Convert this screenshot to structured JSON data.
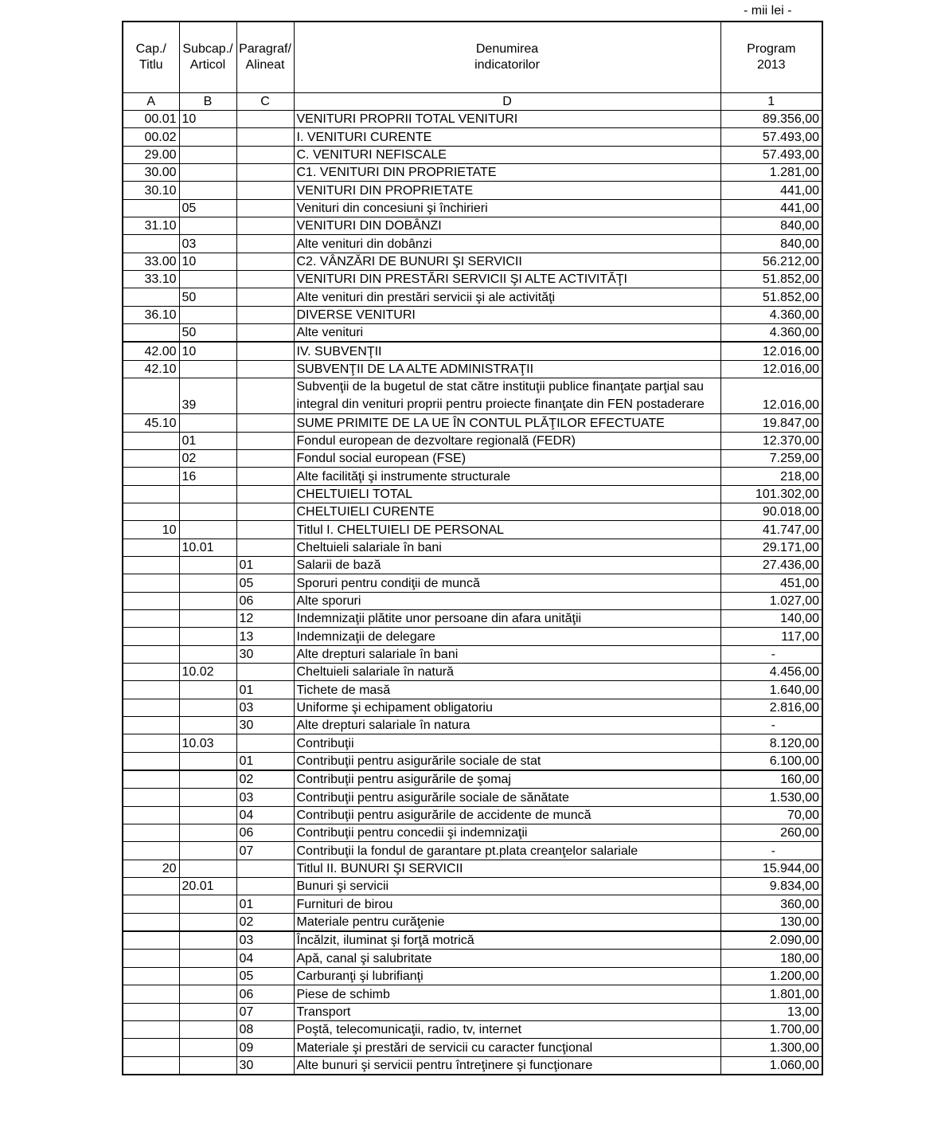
{
  "unit_label": "- mii lei -",
  "header": {
    "col_a": [
      "Cap./",
      "Titlu"
    ],
    "col_b": [
      "Subcap./",
      "Articol"
    ],
    "col_c": [
      "Paragraf/",
      "Alineat"
    ],
    "col_d": [
      "Denumirea",
      "indicatorilor"
    ],
    "col_1": [
      "Program",
      "2013"
    ]
  },
  "letters": [
    "A",
    "B",
    "C",
    "D",
    "1"
  ],
  "rows": [
    [
      "00.01",
      "10",
      "",
      "VENITURI PROPRII TOTAL VENITURI",
      "89.356,00"
    ],
    [
      "00.02",
      "",
      "",
      "I. VENITURI CURENTE",
      "57.493,00"
    ],
    [
      "29.00",
      "",
      "",
      "C. VENITURI NEFISCALE",
      "57.493,00"
    ],
    [
      "30.00",
      "",
      "",
      "C1. VENITURI DIN PROPRIETATE",
      "1.281,00"
    ],
    [
      "30.10",
      "",
      "",
      "VENITURI DIN PROPRIETATE",
      "441,00"
    ],
    [
      "",
      "05",
      "",
      "Venituri din concesiuni şi închirieri",
      "441,00"
    ],
    [
      "31.10",
      "",
      "",
      "VENITURI DIN DOBÂNZI",
      "840,00"
    ],
    [
      "",
      "03",
      "",
      "Alte venituri din dobânzi",
      "840,00"
    ],
    [
      "33.00",
      "10",
      "",
      "C2. VÂNZĂRI DE BUNURI ŞI SERVICII",
      "56.212,00"
    ],
    [
      "33.10",
      "",
      "",
      "VENITURI DIN PRESTĂRI SERVICII ŞI ALTE ACTIVITĂŢI",
      "51.852,00"
    ],
    [
      "",
      "50",
      "",
      "Alte venituri din prestări servicii şi ale activităţi",
      "51.852,00"
    ],
    [
      "36.10",
      "",
      "",
      "DIVERSE VENITURI",
      "4.360,00"
    ],
    [
      "",
      "50",
      "",
      "Alte venituri",
      "4.360,00"
    ],
    [
      "42.00",
      "10",
      "",
      "IV. SUBVENŢII",
      "12.016,00"
    ],
    [
      "42.10",
      "",
      "",
      "SUBVENŢII DE LA ALTE ADMINISTRAŢII",
      "12.016,00"
    ],
    [
      "",
      "39",
      "",
      "Subvenţii de la bugetul de stat către instituţii publice finanţate parţial sau integral din venituri proprii pentru proiecte finanţate din FEN postaderare",
      "12.016,00"
    ],
    [
      "45.10",
      "",
      "",
      "SUME PRIMITE DE LA UE ÎN CONTUL PLĂŢILOR EFECTUATE",
      "19.847,00"
    ],
    [
      "",
      "01",
      "",
      "Fondul european de dezvoltare regională (FEDR)",
      "12.370,00"
    ],
    [
      "",
      "02",
      "",
      "Fondul social european (FSE)",
      "7.259,00"
    ],
    [
      "",
      "16",
      "",
      "Alte facilităţi şi instrumente structurale",
      "218,00"
    ],
    [
      "",
      "",
      "",
      "CHELTUIELI TOTAL",
      "101.302,00"
    ],
    [
      "",
      "",
      "",
      "CHELTUIELI CURENTE",
      "90.018,00"
    ],
    [
      "10",
      "",
      "",
      "Titlul I. CHELTUIELI DE PERSONAL",
      "41.747,00"
    ],
    [
      "",
      "10.01",
      "",
      "Cheltuieli salariale în bani",
      "29.171,00"
    ],
    [
      "",
      "",
      "01",
      "Salarii de bază",
      "27.436,00"
    ],
    [
      "",
      "",
      "05",
      "Sporuri pentru condiţii de muncă",
      "451,00"
    ],
    [
      "",
      "",
      "06",
      "Alte sporuri",
      "1.027,00"
    ],
    [
      "",
      "",
      "12",
      "Indemnizaţii plătite unor persoane din afara unităţii",
      "140,00"
    ],
    [
      "",
      "",
      "13",
      "Indemnizaţii de delegare",
      "117,00"
    ],
    [
      "",
      "",
      "30",
      "Alte drepturi salariale în bani",
      "-"
    ],
    [
      "",
      "10.02",
      "",
      "Cheltuieli salariale în natură",
      "4.456,00"
    ],
    [
      "",
      "",
      "01",
      "Tichete de masă",
      "1.640,00"
    ],
    [
      "",
      "",
      "03",
      "Uniforme şi echipament obligatoriu",
      "2.816,00"
    ],
    [
      "",
      "",
      "30",
      "Alte drepturi salariale în natura",
      "-"
    ],
    [
      "",
      "10.03",
      "",
      "Contribuţii",
      "8.120,00"
    ],
    [
      "",
      "",
      "01",
      "Contribuţii pentru asigurările sociale de stat",
      "6.100,00"
    ],
    [
      "",
      "",
      "02",
      "Contribuţii pentru asigurările de şomaj",
      "160,00"
    ],
    [
      "",
      "",
      "03",
      "Contribuţii pentru asigurările sociale de sănătate",
      "1.530,00"
    ],
    [
      "",
      "",
      "04",
      "Contribuţii pentru asigurările de accidente de muncă",
      "70,00"
    ],
    [
      "",
      "",
      "06",
      "Contribuţii pentru concedii şi indemnizaţii",
      "260,00"
    ],
    [
      "",
      "",
      "07",
      "Contribuţii la fondul de garantare pt.plata creanţelor salariale",
      "-"
    ],
    [
      "20",
      "",
      "",
      "Titlul II. BUNURI ŞI SERVICII",
      "15.944,00"
    ],
    [
      "",
      "20.01",
      "",
      "Bunuri şi servicii",
      "9.834,00"
    ],
    [
      "",
      "",
      "01",
      "Furnituri de birou",
      "360,00"
    ],
    [
      "",
      "",
      "02",
      "Materiale pentru curăţenie",
      "130,00"
    ],
    [
      "",
      "",
      "03",
      "Încălzit, iluminat şi forţă motrică",
      "2.090,00"
    ],
    [
      "",
      "",
      "04",
      "Apă, canal şi salubritate",
      "180,00"
    ],
    [
      "",
      "",
      "05",
      "Carburanţi şi lubrifianţi",
      "1.200,00"
    ],
    [
      "",
      "",
      "06",
      "Piese de schimb",
      "1.801,00"
    ],
    [
      "",
      "",
      "07",
      "Transport",
      "13,00"
    ],
    [
      "",
      "",
      "08",
      "Poştă, telecomunicaţii, radio, tv, internet",
      "1.700,00"
    ],
    [
      "",
      "",
      "09",
      "Materiale şi prestări de servicii cu caracter funcţional",
      "1.300,00"
    ],
    [
      "",
      "",
      "30",
      "Alte bunuri şi servicii pentru întreţinere şi funcţionare",
      "1.060,00"
    ]
  ]
}
